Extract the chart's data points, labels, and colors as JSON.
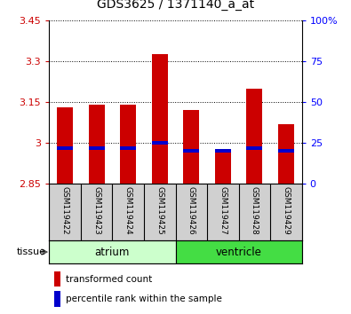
{
  "title": "GDS3625 / 1371140_a_at",
  "samples": [
    "GSM119422",
    "GSM119423",
    "GSM119424",
    "GSM119425",
    "GSM119426",
    "GSM119427",
    "GSM119428",
    "GSM119429"
  ],
  "transformed_count": [
    3.13,
    3.14,
    3.14,
    3.325,
    3.12,
    2.97,
    3.2,
    3.07
  ],
  "percentile_rank": [
    22,
    22,
    22,
    25,
    20,
    20,
    22,
    20
  ],
  "ymin": 2.85,
  "ymax": 3.45,
  "yticks": [
    2.85,
    3.0,
    3.15,
    3.3,
    3.45
  ],
  "ytick_labels": [
    "2.85",
    "3",
    "3.15",
    "3.3",
    "3.45"
  ],
  "right_yticks": [
    0,
    25,
    50,
    75,
    100
  ],
  "right_ytick_labels": [
    "0",
    "25",
    "50",
    "75",
    "100%"
  ],
  "tissue_groups": [
    {
      "label": "atrium",
      "samples": [
        0,
        1,
        2,
        3
      ],
      "color": "#CCFFCC"
    },
    {
      "label": "ventricle",
      "samples": [
        4,
        5,
        6,
        7
      ],
      "color": "#44DD44"
    }
  ],
  "bar_color_red": "#CC0000",
  "bar_color_blue": "#0000CC",
  "bar_width": 0.5,
  "legend_red": "transformed count",
  "legend_blue": "percentile rank within the sample",
  "tissue_label": "tissue"
}
